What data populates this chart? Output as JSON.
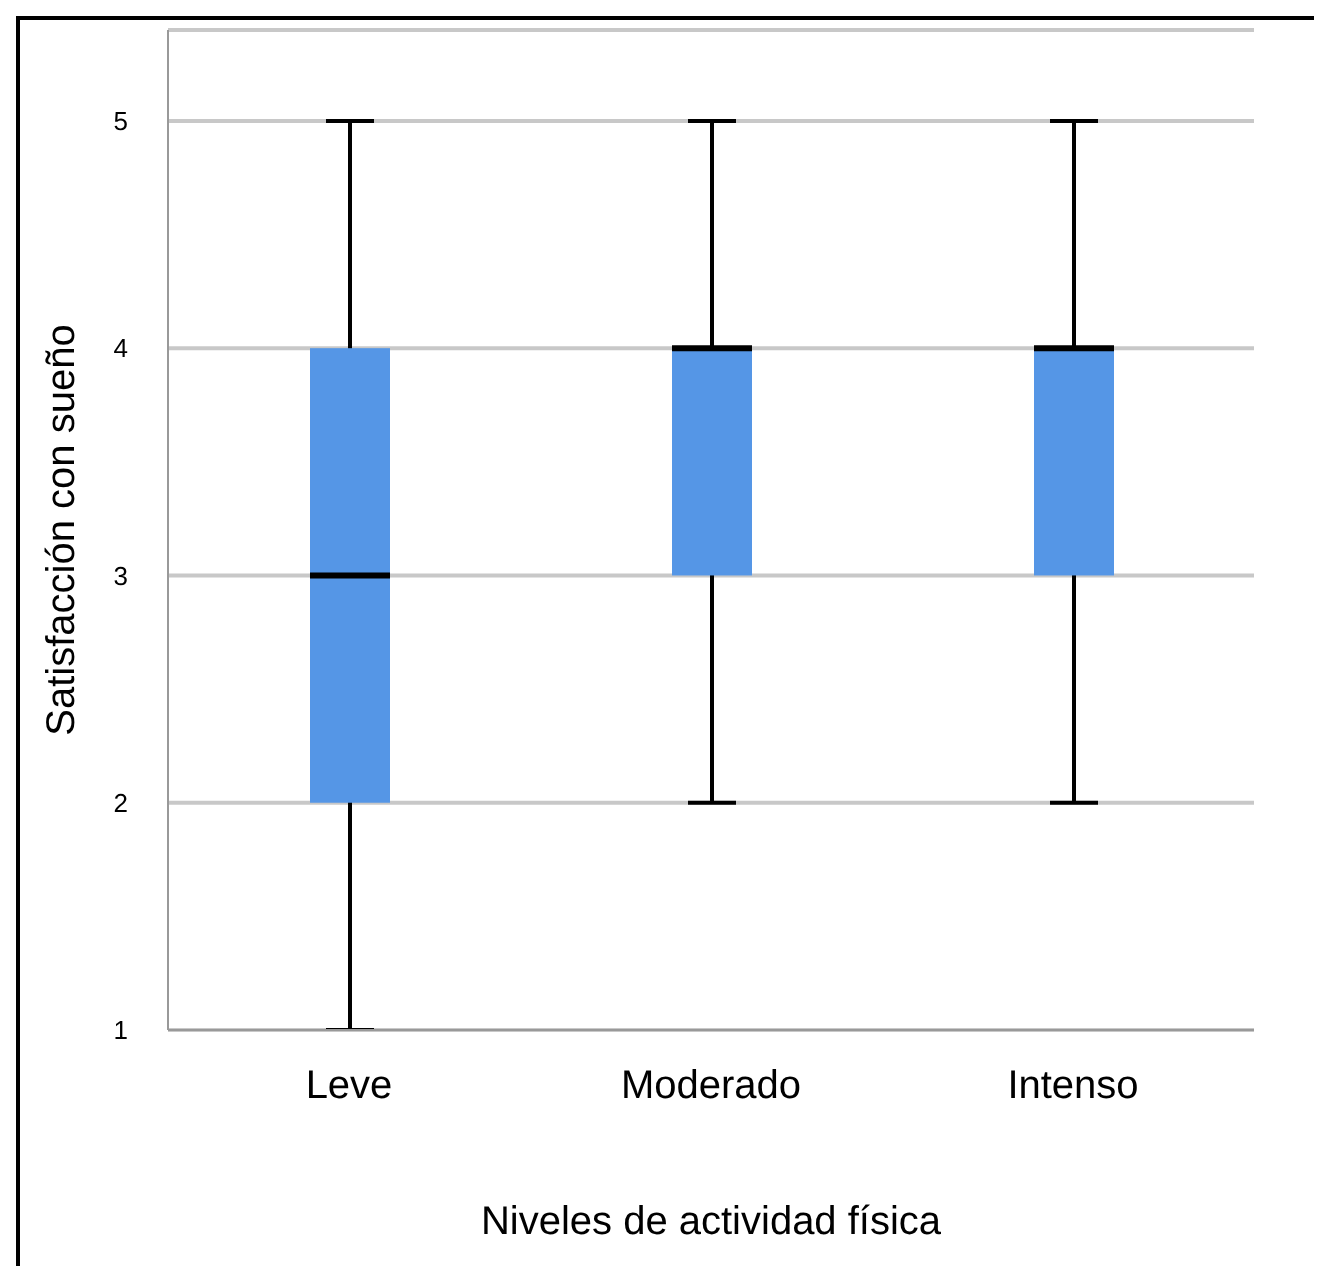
{
  "chart_data": {
    "type": "box",
    "xlabel": "Niveles de actividad física",
    "ylabel": "Satisfacción con sueño",
    "categories": [
      "Leve",
      "Moderado",
      "Intenso"
    ],
    "series": [
      {
        "color": "#5596e6",
        "boxes": [
          {
            "low": 1,
            "q1": 2,
            "median": 3,
            "q3": 4,
            "high": 5
          },
          {
            "low": 2,
            "q1": 3,
            "median": 4,
            "q3": 4,
            "high": 5
          },
          {
            "low": 2,
            "q1": 3,
            "median": 4,
            "q3": 4,
            "high": 5
          }
        ]
      }
    ],
    "ylim": [
      1,
      5.4
    ],
    "yticks": [
      1,
      2,
      3,
      4,
      5
    ],
    "grid": "y"
  }
}
